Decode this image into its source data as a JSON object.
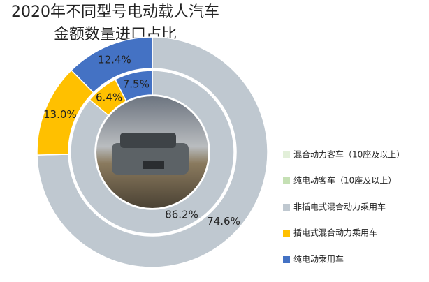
{
  "chart_data": {
    "type": "donut",
    "title": [
      "2020年不同型号电动载人汽车",
      "金额数量进口占比"
    ],
    "categories": [
      "混合动力客车（10座及以上）",
      "纯电动客车（10座及以上）",
      "非插电式混合动力乘用车",
      "插电式混合动力乘用车",
      "纯电动乘用车"
    ],
    "colors": [
      "#e2efd9",
      "#c5e0b4",
      "#bfc8d0",
      "#ffc000",
      "#4472c4"
    ],
    "rings": [
      {
        "values": [
          0,
          0,
          74.6,
          13.0,
          12.4
        ],
        "value_labels": [
          null,
          null,
          "74.6%",
          "13.0%",
          "12.4%"
        ]
      },
      {
        "values": [
          0,
          0,
          86.2,
          6.4,
          7.5
        ],
        "value_labels": [
          null,
          null,
          "86.2%",
          "6.4%",
          "7.5%"
        ]
      }
    ],
    "legend": "right"
  }
}
